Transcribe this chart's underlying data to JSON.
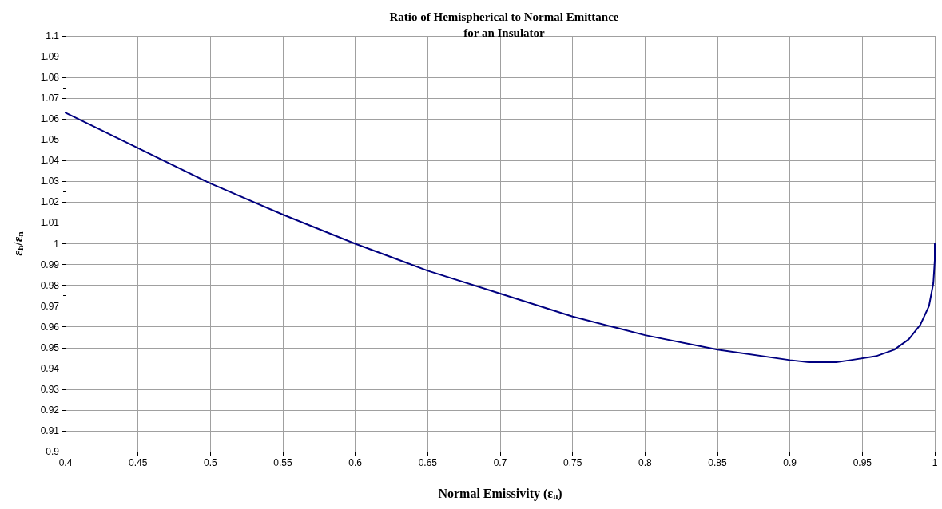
{
  "chart_data": {
    "type": "line",
    "title": "Ratio of Hemispherical to Normal Emittance\nfor an Insulator",
    "xlabel": "Normal Emissivity (ε$_{n}$)",
    "ylabel": "ε$_{h}$/ε$_{n}$",
    "x": [
      0.4,
      0.45,
      0.5,
      0.55,
      0.6,
      0.65,
      0.7,
      0.75,
      0.8,
      0.85,
      0.9,
      0.913,
      0.932,
      0.942,
      0.96,
      0.972,
      0.982,
      0.99,
      0.996,
      0.999,
      1.0,
      1.0
    ],
    "series": [
      {
        "color": "#000080",
        "values": [
          1.063,
          1.046,
          1.029,
          1.014,
          1.0,
          0.987,
          0.976,
          0.965,
          0.956,
          0.949,
          0.944,
          0.943,
          0.943,
          0.944,
          0.946,
          0.949,
          0.954,
          0.961,
          0.97,
          0.981,
          0.992,
          1.0
        ]
      }
    ],
    "xlim": [
      0.4,
      1
    ],
    "xticks": [
      0.4,
      0.45,
      0.5,
      0.55,
      0.6,
      0.65,
      0.7,
      0.75,
      0.8,
      0.85,
      0.9,
      0.95,
      1
    ],
    "ylim": [
      0.9,
      1.1
    ],
    "yticks": [
      0.9,
      0.91,
      0.92,
      0.93,
      0.94,
      0.95,
      0.96,
      0.97,
      0.98,
      0.99,
      1,
      1.01,
      1.02,
      1.03,
      1.04,
      1.05,
      1.06,
      1.07,
      1.08,
      1.09,
      1.1
    ],
    "grid": true,
    "marker": "none",
    "line_style": "solid"
  }
}
